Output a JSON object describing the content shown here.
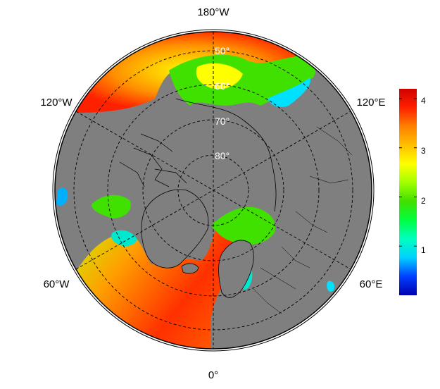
{
  "map": {
    "projection": "north-polar-stereographic",
    "longitude_labels": {
      "top": "180°W",
      "upper_left": "120°W",
      "upper_right": "120°E",
      "lower_left": "60°W",
      "lower_right": "60°E",
      "bottom": "0°"
    },
    "latitude_labels": [
      "50°",
      "60°",
      "70°",
      "80°"
    ],
    "graticule": "dashed",
    "land_color": "#7f7f7f",
    "coastline_color": "#000000"
  },
  "colorbar": {
    "ticks": [
      "1",
      "2",
      "3",
      "4"
    ],
    "min": 0,
    "max": 4.2,
    "colormap": "jet",
    "stops": [
      "#0000b0",
      "#0040ff",
      "#00d0ff",
      "#00ffc0",
      "#00ff40",
      "#40e000",
      "#a0ff00",
      "#ffff00",
      "#ffc000",
      "#ff8000",
      "#ff2000",
      "#d00000"
    ]
  }
}
